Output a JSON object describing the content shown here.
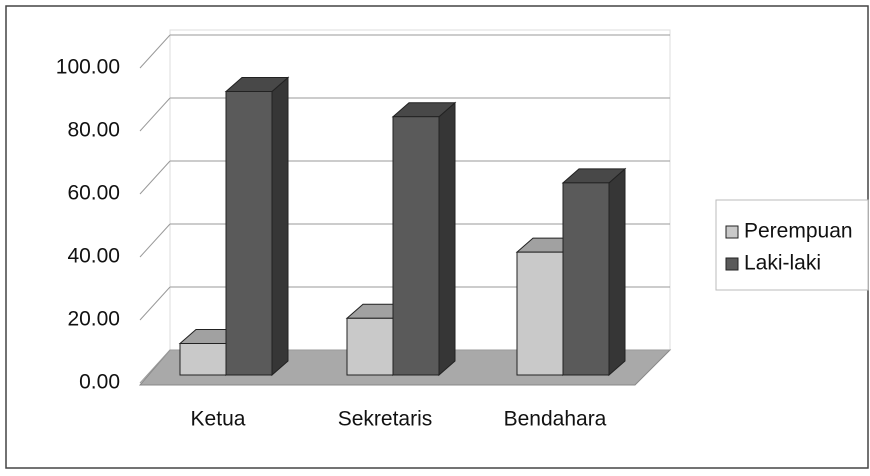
{
  "chart_data": {
    "type": "bar3d",
    "categories": [
      "Ketua",
      "Sekretaris",
      "Bendahara"
    ],
    "series": [
      {
        "name": "Perempuan",
        "color": "#c9c9c9",
        "values": [
          10,
          18,
          39
        ]
      },
      {
        "name": "Laki-laki",
        "color": "#5a5a5a",
        "values": [
          90,
          82,
          61
        ]
      }
    ],
    "ylim": [
      0,
      100
    ],
    "yticks": [
      {
        "value": 0,
        "label": "0.00"
      },
      {
        "value": 20,
        "label": "20.00"
      },
      {
        "value": 40,
        "label": "40.00"
      },
      {
        "value": 60,
        "label": "60.00"
      },
      {
        "value": 80,
        "label": "80.00"
      },
      {
        "value": 100,
        "label": "100.00"
      }
    ],
    "grid": true,
    "legend": "right"
  }
}
